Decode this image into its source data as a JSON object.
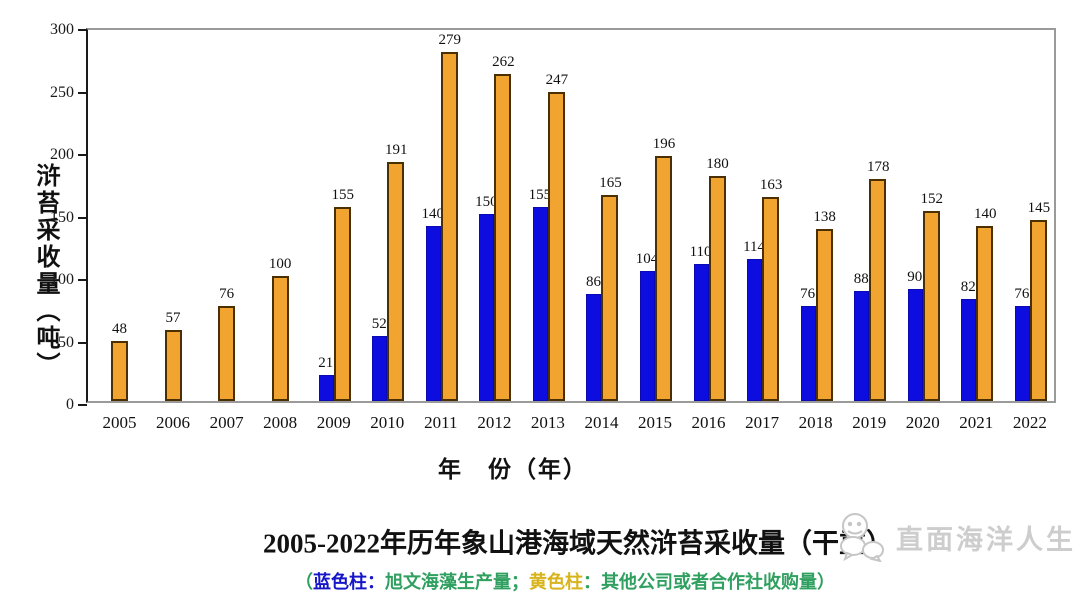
{
  "chart_data": {
    "type": "bar",
    "categories": [
      "2005",
      "2006",
      "2007",
      "2008",
      "2009",
      "2010",
      "2011",
      "2012",
      "2013",
      "2014",
      "2015",
      "2016",
      "2017",
      "2018",
      "2019",
      "2020",
      "2021",
      "2022"
    ],
    "series": [
      {
        "name": "旭文海藻生产量",
        "color": "#0d0de0",
        "values": [
          null,
          null,
          null,
          null,
          21,
          52,
          140,
          150,
          155,
          86,
          104,
          110,
          114,
          76,
          88,
          90,
          82,
          76
        ]
      },
      {
        "name": "其他公司或者合作社收购量",
        "color": "#f2a431",
        "values": [
          48,
          57,
          76,
          100,
          155,
          191,
          279,
          262,
          247,
          165,
          196,
          180,
          163,
          138,
          178,
          152,
          140,
          145
        ]
      }
    ],
    "title": "2005-2022年历年象山港海域天然浒苔采收量（干重）",
    "xlabel": "年　份（年）",
    "ylabel": "浒苔采收量（吨）",
    "ylim": [
      0,
      300
    ],
    "yticks": [
      0,
      50,
      100,
      150,
      200,
      250,
      300
    ],
    "grid": false,
    "legend_position": "caption-below-title"
  },
  "caption": {
    "title": "2005-2022年历年象山港海域天然浒苔采收量（干重）",
    "legend_segments": [
      {
        "text": "（",
        "color": "#2fa05f"
      },
      {
        "text": "蓝色柱：",
        "color": "#1616c8"
      },
      {
        "text": "旭文海藻生产量；",
        "color": "#2fa05f"
      },
      {
        "text": "黄色柱",
        "color": "#d8b41c"
      },
      {
        "text": "：其他公司或者合作社收购量）",
        "color": "#2fa05f"
      }
    ]
  },
  "watermark": {
    "text": "直面海洋人生"
  },
  "colors": {
    "bar_blue": "#0d0de0",
    "bar_orange": "#f2a431",
    "bar_orange_border": "#4a2f00",
    "axis_gray": "#9a9a9a",
    "axis_black": "#1a1a1a",
    "legend_green": "#2fa05f",
    "legend_blue": "#1616c8",
    "legend_yellow": "#d8b41c",
    "watermark_gray": "#cdcdcd"
  }
}
